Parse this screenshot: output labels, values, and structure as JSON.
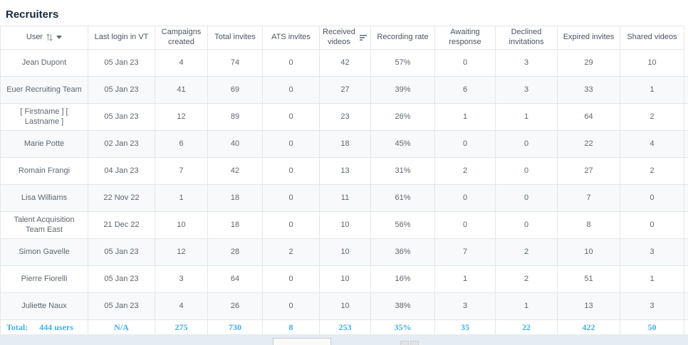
{
  "page": {
    "title": "Recruiters"
  },
  "colors": {
    "title": "#17293e",
    "total_accent": "#3fb0e8",
    "row_stripe": "#f7f9fb",
    "border": "#e3e6e9",
    "bottom_bar": "#e5ecf3"
  },
  "table": {
    "columns": [
      {
        "label": "User",
        "icons": [
          "sort-alpha-icon",
          "caret-down-icon"
        ]
      },
      {
        "label": "Last login in VT",
        "icons": []
      },
      {
        "label": "Campaigns created",
        "icons": []
      },
      {
        "label": "Total invites",
        "icons": []
      },
      {
        "label": "ATS invites",
        "icons": []
      },
      {
        "label": "Received videos",
        "icons": [
          "sort-bars-icon"
        ]
      },
      {
        "label": "Recording rate",
        "icons": []
      },
      {
        "label": "Awaiting response",
        "icons": []
      },
      {
        "label": "Declined invitations",
        "icons": []
      },
      {
        "label": "Expired invites",
        "icons": []
      },
      {
        "label": "Shared videos",
        "icons": []
      }
    ],
    "rows": [
      [
        "Jean Dupont",
        "05 Jan 23",
        "4",
        "74",
        "0",
        "42",
        "57%",
        "0",
        "3",
        "29",
        "10"
      ],
      [
        "Euer Recruiting Team",
        "05 Jan 23",
        "41",
        "69",
        "0",
        "27",
        "39%",
        "6",
        "3",
        "33",
        "1"
      ],
      [
        "[ Firstname ] [ Lastname ]",
        "05 Jan 23",
        "12",
        "89",
        "0",
        "23",
        "26%",
        "1",
        "1",
        "64",
        "2"
      ],
      [
        "Marie Potte",
        "02 Jan 23",
        "6",
        "40",
        "0",
        "18",
        "45%",
        "0",
        "0",
        "22",
        "4"
      ],
      [
        "Romain Frangi",
        "04 Jan 23",
        "7",
        "42",
        "0",
        "13",
        "31%",
        "2",
        "0",
        "27",
        "2"
      ],
      [
        "Lisa Williams",
        "22 Nov 22",
        "1",
        "18",
        "0",
        "11",
        "61%",
        "0",
        "0",
        "7",
        "0"
      ],
      [
        "Talent Acquisition Team East",
        "21 Dec 22",
        "10",
        "18",
        "0",
        "10",
        "56%",
        "0",
        "0",
        "8",
        "0"
      ],
      [
        "Simon Gavelle",
        "05 Jan 23",
        "12",
        "28",
        "2",
        "10",
        "36%",
        "7",
        "2",
        "10",
        "3"
      ],
      [
        "Pierre Fiorelli",
        "05 Jan 23",
        "3",
        "64",
        "0",
        "10",
        "16%",
        "1",
        "2",
        "51",
        "1"
      ],
      [
        "Juliette Naux",
        "05 Jan 23",
        "4",
        "26",
        "0",
        "10",
        "38%",
        "3",
        "1",
        "13",
        "3"
      ]
    ],
    "total": {
      "label": "Total:",
      "users": "444 users",
      "values": [
        "N/A",
        "275",
        "730",
        "8",
        "253",
        "35%",
        "35",
        "22",
        "422",
        "50"
      ]
    }
  }
}
